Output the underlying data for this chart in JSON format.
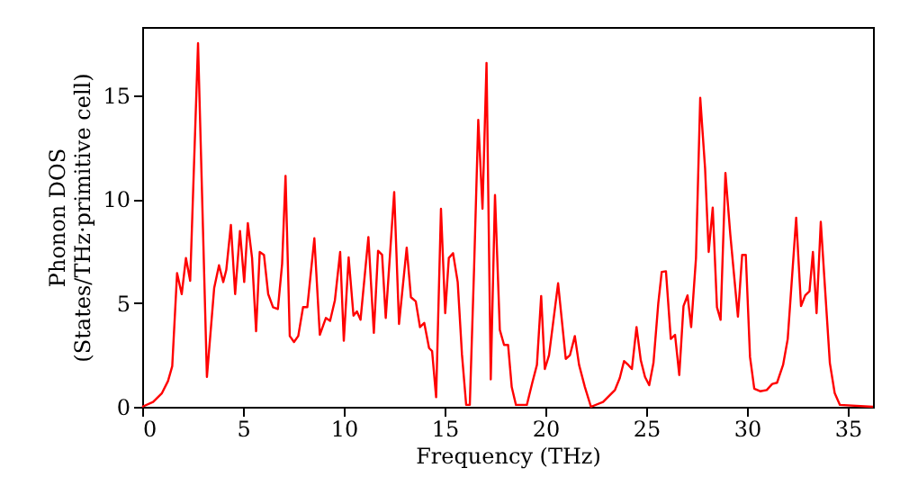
{
  "chart_data": {
    "type": "line",
    "xlabel": "Frequency (THz)",
    "ylabel": "Phonon DOS\n(States/THz·primitive cell)",
    "x": [
      0,
      0.54,
      0.98,
      1.28,
      1.49,
      1.73,
      1.96,
      2.17,
      2.38,
      2.77,
      3.21,
      3.57,
      3.81,
      4.02,
      4.17,
      4.4,
      4.61,
      4.85,
      5.06,
      5.24,
      5.45,
      5.65,
      5.83,
      6.04,
      6.25,
      6.49,
      6.73,
      6.94,
      7.11,
      7.32,
      7.53,
      7.74,
      7.98,
      8.19,
      8.54,
      8.81,
      9.11,
      9.32,
      9.56,
      9.82,
      10.0,
      10.24,
      10.48,
      10.65,
      10.83,
      11.22,
      11.49,
      11.7,
      11.9,
      12.08,
      12.5,
      12.74,
      13.12,
      13.33,
      13.57,
      13.78,
      13.99,
      14.23,
      14.38,
      14.58,
      14.82,
      15.03,
      15.21,
      15.42,
      15.65,
      15.86,
      16.07,
      16.25,
      16.46,
      16.67,
      16.88,
      17.08,
      17.29,
      17.5,
      17.74,
      17.95,
      18.15,
      18.33,
      18.54,
      19.08,
      19.35,
      19.58,
      19.79,
      19.97,
      20.18,
      20.63,
      21.01,
      21.22,
      21.46,
      21.67,
      21.96,
      22.26,
      22.86,
      23.45,
      23.69,
      23.9,
      24.11,
      24.29,
      24.52,
      24.73,
      24.94,
      25.15,
      25.36,
      25.6,
      25.77,
      25.98,
      26.22,
      26.43,
      26.64,
      26.85,
      27.05,
      27.23,
      27.47,
      27.68,
      27.92,
      28.1,
      28.3,
      28.51,
      28.69,
      28.93,
      29.17,
      29.55,
      29.76,
      29.94,
      30.15,
      30.36,
      30.65,
      30.98,
      31.25,
      31.49,
      31.79,
      32.02,
      32.44,
      32.68,
      32.89,
      33.1,
      33.27,
      33.45,
      33.66,
      33.87,
      34.11,
      34.35,
      34.61,
      36.25
    ],
    "series": [
      {
        "color": "#ff0000",
        "values": [
          0,
          0.23,
          0.66,
          1.24,
          1.96,
          6.44,
          5.43,
          7.17,
          6.07,
          17.52,
          1.44,
          5.72,
          6.82,
          6.01,
          6.59,
          8.76,
          5.43,
          8.47,
          6.01,
          8.85,
          7.17,
          3.64,
          7.46,
          7.32,
          5.43,
          4.8,
          4.71,
          6.88,
          11.13,
          3.41,
          3.12,
          3.41,
          4.8,
          4.8,
          8.12,
          3.47,
          4.28,
          4.14,
          5.14,
          7.46,
          3.18,
          7.2,
          4.39,
          4.6,
          4.19,
          8.18,
          3.56,
          7.52,
          7.32,
          4.28,
          10.35,
          3.99,
          7.67,
          5.28,
          5.08,
          3.84,
          4.04,
          2.83,
          2.68,
          0.46,
          9.54,
          4.51,
          7.17,
          7.4,
          6.01,
          2.54,
          0.09,
          0.09,
          6.59,
          13.82,
          9.54,
          16.57,
          1.32,
          10.2,
          3.7,
          2.98,
          2.98,
          0.95,
          0.09,
          0.09,
          1.16,
          2.02,
          5.34,
          1.82,
          2.49,
          5.95,
          2.31,
          2.49,
          3.41,
          2.02,
          0.95,
          0,
          0.23,
          0.81,
          1.39,
          2.2,
          2.02,
          1.82,
          3.84,
          2.25,
          1.44,
          1.04,
          2.11,
          4.99,
          6.5,
          6.53,
          3.27,
          3.47,
          1.53,
          4.85,
          5.37,
          3.84,
          7.17,
          14.89,
          11.5,
          7.46,
          9.6,
          4.8,
          4.19,
          11.27,
          8.32,
          4.34,
          7.32,
          7.32,
          2.4,
          0.87,
          0.75,
          0.81,
          1.1,
          1.16,
          2.02,
          3.27,
          9.11,
          4.85,
          5.37,
          5.57,
          7.46,
          4.51,
          8.91,
          5.72,
          2.11,
          0.66,
          0.09,
          0
        ]
      }
    ],
    "xlim": [
      0,
      36.25
    ],
    "ylim": [
      0,
      18.3
    ],
    "xticks": [
      0,
      5,
      10,
      15,
      20,
      25,
      30,
      35
    ],
    "yticks": [
      0,
      5,
      10,
      15
    ],
    "grid": false,
    "marker": "none",
    "line_style": "solid"
  }
}
